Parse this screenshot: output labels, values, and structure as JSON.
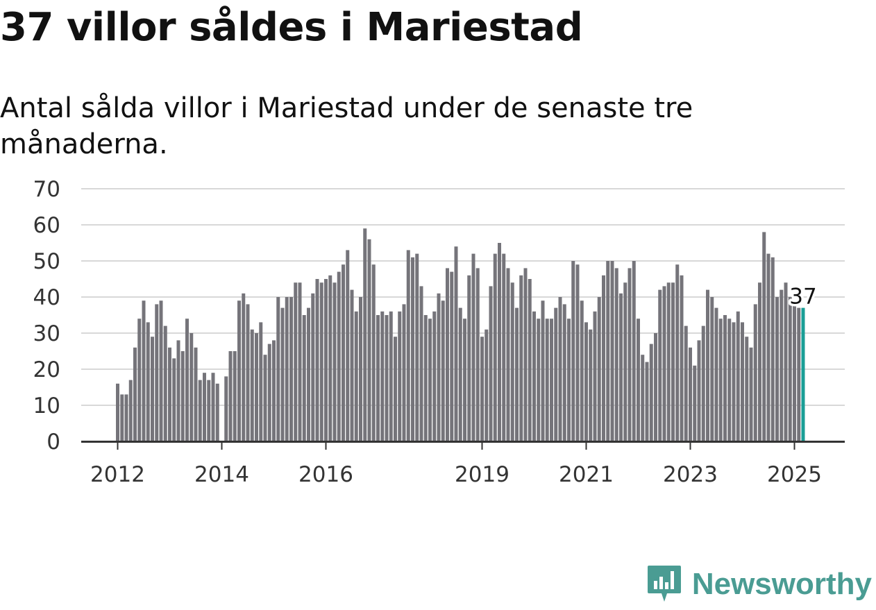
{
  "header": {
    "title": "37 villor såldes i Mariestad",
    "subtitle": "Antal sålda villor i Mariestad under de senaste tre månaderna."
  },
  "brand": {
    "name": "Newsworthy",
    "color": "#4a9c93"
  },
  "colors": {
    "bar": "#75747a",
    "highlight": "#1a9e96",
    "grid": "#d8d8d8",
    "axis": "#333333"
  },
  "chart_data": {
    "type": "bar",
    "title": "37 villor såldes i Mariestad",
    "subtitle": "Antal sålda villor i Mariestad under de senaste tre månaderna.",
    "xlabel": "",
    "ylabel": "",
    "ylim": [
      0,
      70
    ],
    "yticks": [
      0,
      10,
      20,
      30,
      40,
      50,
      60,
      70
    ],
    "xtick_labels": [
      "2012",
      "2014",
      "2016",
      "2019",
      "2021",
      "2023",
      "2025"
    ],
    "grid": true,
    "x_start": "2012-01",
    "x_end": "2025-02",
    "values": [
      16,
      13,
      13,
      17,
      26,
      34,
      39,
      33,
      29,
      38,
      39,
      32,
      26,
      23,
      28,
      25,
      34,
      30,
      26,
      17,
      19,
      17,
      19,
      16,
      null,
      18,
      25,
      25,
      39,
      41,
      38,
      31,
      30,
      33,
      24,
      27,
      28,
      40,
      37,
      40,
      40,
      44,
      44,
      35,
      37,
      41,
      45,
      44,
      45,
      46,
      44,
      47,
      49,
      53,
      42,
      36,
      40,
      59,
      56,
      49,
      35,
      36,
      35,
      36,
      29,
      36,
      38,
      53,
      51,
      52,
      43,
      35,
      34,
      36,
      41,
      39,
      48,
      47,
      54,
      37,
      34,
      46,
      52,
      48,
      29,
      31,
      43,
      52,
      55,
      52,
      48,
      44,
      37,
      46,
      48,
      45,
      36,
      34,
      39,
      34,
      34,
      37,
      40,
      38,
      34,
      50,
      49,
      39,
      33,
      31,
      36,
      40,
      46,
      50,
      50,
      48,
      41,
      44,
      48,
      50,
      34,
      24,
      22,
      27,
      30,
      42,
      43,
      44,
      44,
      49,
      46,
      32,
      26,
      21,
      28,
      32,
      42,
      40,
      37,
      34,
      35,
      34,
      33,
      36,
      33,
      29,
      26,
      38,
      44,
      58,
      52,
      51,
      40,
      42,
      44,
      40,
      38,
      37,
      37
    ],
    "highlight_last": true,
    "annotation": "37"
  }
}
